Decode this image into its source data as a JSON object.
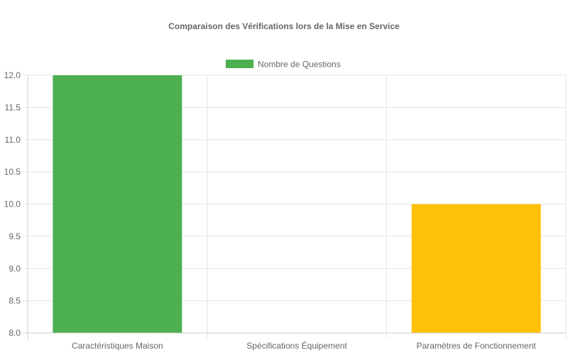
{
  "chart_data": {
    "type": "bar",
    "title": "Comparaison des Vérifications lors de la Mise en Service",
    "categories": [
      "Caractéristiques Maison",
      "Spécifications Équipement",
      "Paramètres de Fonctionnement"
    ],
    "series": [
      {
        "name": "Nombre de Questions",
        "values": [
          12,
          8,
          10
        ],
        "colors": [
          "#4caf50",
          "#2196f3",
          "#ffc107"
        ]
      }
    ],
    "legend_color": "#4caf50",
    "ylim": [
      8,
      12
    ],
    "yticks": [
      "8.0",
      "8.5",
      "9.0",
      "9.5",
      "10.0",
      "10.5",
      "11.0",
      "11.5",
      "12.0"
    ],
    "legend_position": "top",
    "grid": true
  }
}
